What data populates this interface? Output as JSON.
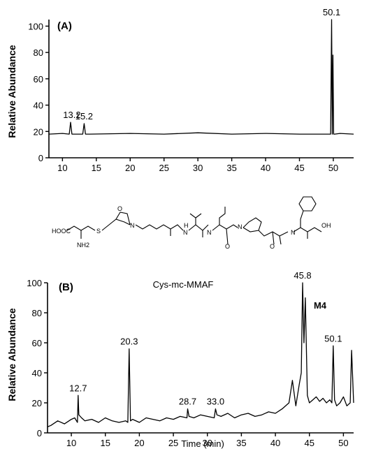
{
  "chart_data": [
    {
      "type": "line",
      "panel_label": "(A)",
      "title": "",
      "xlabel": "",
      "ylabel": "Relative Abundance",
      "xlim": [
        8,
        53
      ],
      "ylim": [
        0,
        105
      ],
      "x_ticks": [
        10,
        15,
        20,
        25,
        30,
        35,
        40,
        45,
        50
      ],
      "y_ticks": [
        0,
        20,
        40,
        60,
        80,
        100
      ],
      "grid": false,
      "legend": "none",
      "series": [
        {
          "x": [
            8,
            10,
            11.0,
            11.2,
            11.4,
            12,
            13.0,
            13.2,
            13.4,
            14,
            20,
            25,
            30,
            35,
            40,
            45,
            49.3,
            49.6,
            49.75,
            49.85,
            49.95,
            50.05,
            50.2,
            51,
            53
          ],
          "y": [
            18,
            18.5,
            18,
            27,
            18,
            18,
            18,
            26,
            18,
            18,
            18.5,
            18,
            19,
            18,
            18.5,
            18,
            18,
            18,
            105,
            18,
            78,
            18,
            18,
            18.5,
            18
          ]
        }
      ],
      "annotations": [
        {
          "text": "13.2",
          "x": 11.4,
          "y": 27
        },
        {
          "text": "15.2",
          "x": 13.2,
          "y": 26
        },
        {
          "text": "50.1",
          "x": 49.75,
          "y": 105
        }
      ]
    },
    {
      "type": "line",
      "panel_label": "(B)",
      "title": "Cys-mc-MMAF",
      "xlabel": "Time (min)",
      "ylabel": "Relative Abundance",
      "xlim": [
        6.5,
        51.5
      ],
      "ylim": [
        0,
        100
      ],
      "x_ticks": [
        10,
        15,
        20,
        25,
        30,
        35,
        40,
        45,
        50
      ],
      "y_ticks": [
        0,
        20,
        40,
        60,
        80,
        100
      ],
      "grid": false,
      "legend": "none",
      "series": [
        {
          "x": [
            6.5,
            7,
            8,
            9,
            10,
            10.5,
            10.9,
            11.0,
            11.1,
            11.5,
            12,
            13,
            14,
            15,
            16,
            17,
            18,
            18.3,
            18.5,
            18.7,
            19,
            20,
            21,
            22,
            23,
            24,
            25,
            26,
            27,
            27.1,
            27.3,
            28,
            29,
            30,
            31,
            31.2,
            31.4,
            32,
            33,
            34,
            35,
            36,
            37,
            38,
            39,
            40,
            41,
            42,
            42.5,
            43,
            43.5,
            43.8,
            44.0,
            44.2,
            44.4,
            44.7,
            45,
            45.5,
            46,
            46.5,
            47,
            47.5,
            48,
            48.3,
            48.5,
            48.7,
            49,
            49.5,
            50,
            50.5,
            51,
            51.2,
            51.5
          ],
          "y": [
            4,
            5,
            8,
            6,
            9,
            10,
            7,
            25,
            12,
            10,
            8,
            9,
            7,
            10,
            8,
            7,
            8,
            7,
            56,
            8,
            9,
            7,
            10,
            9,
            8,
            10,
            9,
            11,
            10,
            16,
            11,
            10,
            12,
            11,
            10,
            16,
            12,
            11,
            13,
            10,
            12,
            13,
            11,
            12,
            14,
            13,
            16,
            20,
            35,
            18,
            32,
            40,
            100,
            60,
            90,
            25,
            20,
            22,
            24,
            21,
            23,
            20,
            22,
            20,
            58,
            22,
            18,
            20,
            24,
            18,
            20,
            55,
            20
          ]
        }
      ],
      "annotations": [
        {
          "text": "12.7",
          "x": 11.0,
          "y": 25
        },
        {
          "text": "20.3",
          "x": 18.5,
          "y": 56
        },
        {
          "text": "28.7",
          "x": 27.1,
          "y": 16
        },
        {
          "text": "33.0",
          "x": 31.2,
          "y": 16
        },
        {
          "text": "45.8",
          "x": 44.0,
          "y": 100
        },
        {
          "text": "M4",
          "x": 44.2,
          "y": 80
        },
        {
          "text": "50.1",
          "x": 48.5,
          "y": 58
        }
      ]
    }
  ],
  "structure": {
    "labels": [
      "HOOC",
      "NH2",
      "S",
      "N",
      "O",
      "H",
      "OH"
    ]
  }
}
